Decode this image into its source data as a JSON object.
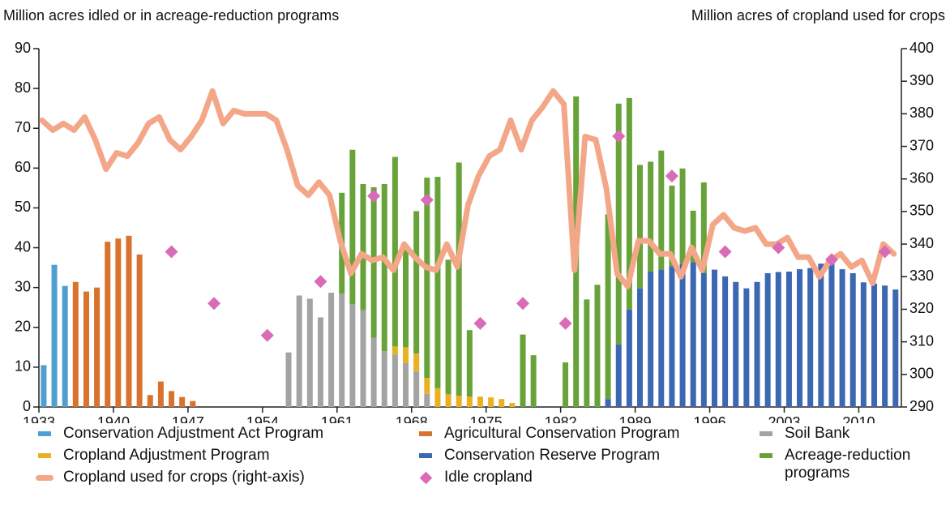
{
  "chart_data": {
    "type": "bar",
    "y_label": "Million acres idled or in acreage-reduction programs",
    "y2_label": "Million acres of cropland used for crops",
    "xlim": [
      1933,
      2014
    ],
    "xticks": [
      1933,
      1940,
      1947,
      1954,
      1961,
      1968,
      1975,
      1982,
      1989,
      1996,
      2003,
      2010
    ],
    "ylim": [
      0,
      90
    ],
    "yticks": [
      0,
      10,
      20,
      30,
      40,
      50,
      60,
      70,
      80,
      90
    ],
    "y2lim": [
      290,
      400
    ],
    "y2ticks": [
      290,
      300,
      310,
      320,
      330,
      340,
      350,
      360,
      370,
      380,
      390,
      400
    ],
    "stacked": true,
    "series": [
      {
        "name": "Conservation Adjustment Act Program",
        "type": "bar",
        "color": "#4f9fd3",
        "x": [
          1933,
          1934,
          1935
        ],
        "values": [
          10.5,
          35.7,
          30.4
        ]
      },
      {
        "name": "Agricultural Conservation Program",
        "type": "bar",
        "color": "#d9722c",
        "x": [
          1936,
          1937,
          1938,
          1939,
          1940,
          1941,
          1942,
          1943,
          1944,
          1945,
          1946,
          1947
        ],
        "values": [
          31.4,
          29,
          30,
          41.5,
          42.3,
          43,
          38.3,
          3.0,
          6.4,
          4.0,
          2.5,
          1.5
        ]
      },
      {
        "name": "Soil Bank",
        "type": "bar",
        "color": "#a3a3a3",
        "x": [
          1956,
          1957,
          1958,
          1959,
          1960,
          1961,
          1962,
          1963,
          1964,
          1965,
          1966,
          1967,
          1968,
          1969
        ],
        "values": [
          13.7,
          28,
          27.2,
          22.5,
          28.7,
          28.5,
          25.8,
          24.3,
          17.4,
          14,
          13.2,
          11,
          9,
          3.3
        ]
      },
      {
        "name": "Cropland Adjustment Program",
        "type": "bar",
        "color": "#e9b120",
        "x": [
          1966,
          1967,
          1968,
          1969,
          1970,
          1971,
          1972,
          1973,
          1974,
          1975,
          1976,
          1977
        ],
        "values": [
          2,
          4,
          4.4,
          4,
          4.7,
          3.2,
          2.8,
          2.6,
          2.6,
          2.4,
          2.0,
          1.0
        ]
      },
      {
        "name": "Conservation Reserve Program",
        "type": "bar",
        "color": "#3b67b3",
        "x": [
          1986,
          1987,
          1988,
          1989,
          1990,
          1991,
          1992,
          1993,
          1994,
          1995,
          1996,
          1997,
          1998,
          1999,
          2000,
          2001,
          2002,
          2003,
          2004,
          2005,
          2006,
          2007,
          2008,
          2009,
          2010,
          2011,
          2012,
          2013
        ],
        "values": [
          2,
          15.7,
          24.5,
          29.8,
          34,
          34.5,
          35.4,
          35.9,
          36.4,
          33.6,
          34.5,
          32.8,
          31.4,
          29.8,
          31.4,
          33.6,
          33.9,
          34.0,
          34.6,
          34.9,
          36.0,
          36.8,
          34.6,
          33.6,
          31.3,
          31.0,
          30.5,
          29.5
        ]
      },
      {
        "name": "Acreage-reduction programs",
        "type": "bar",
        "color": "#68a33a",
        "x": [
          1961,
          1962,
          1963,
          1964,
          1965,
          1966,
          1967,
          1968,
          1969,
          1970,
          1971,
          1972,
          1973,
          1978,
          1979,
          1982,
          1983,
          1984,
          1985,
          1986,
          1987,
          1988,
          1989,
          1990,
          1991,
          1992,
          1993,
          1994,
          1995
        ],
        "values": [
          25.3,
          38.8,
          31.7,
          37.8,
          42,
          47.6,
          25,
          35.8,
          50.3,
          53.1,
          33.8,
          58.6,
          16.7,
          18.2,
          13,
          11.2,
          78,
          27,
          30.7,
          46.4,
          60.5,
          53.1,
          31,
          27.6,
          29.9,
          20.2,
          24,
          12.9,
          22.8
        ]
      },
      {
        "name": "Cropland used for crops (right-axis)",
        "type": "line",
        "axis": "y2",
        "color": "#f3a788",
        "x": [
          1933,
          1934,
          1935,
          1936,
          1937,
          1938,
          1939,
          1940,
          1941,
          1942,
          1943,
          1944,
          1945,
          1946,
          1947,
          1948,
          1949,
          1950,
          1951,
          1952,
          1953,
          1954,
          1955,
          1956,
          1957,
          1958,
          1959,
          1960,
          1961,
          1962,
          1963,
          1964,
          1965,
          1966,
          1967,
          1968,
          1969,
          1970,
          1971,
          1972,
          1973,
          1974,
          1975,
          1976,
          1977,
          1978,
          1979,
          1980,
          1981,
          1982,
          1983,
          1984,
          1985,
          1986,
          1987,
          1988,
          1989,
          1990,
          1991,
          1992,
          1993,
          1994,
          1995,
          1996,
          1997,
          1998,
          1999,
          2000,
          2001,
          2002,
          2003,
          2004,
          2005,
          2006,
          2007,
          2008,
          2009,
          2010,
          2011,
          2012,
          2013
        ],
        "values": [
          378,
          375,
          377,
          375,
          379,
          372,
          363,
          368,
          367,
          371,
          377,
          379,
          372,
          369,
          373,
          378,
          387,
          377,
          381,
          380,
          380,
          380,
          378,
          369,
          358,
          355,
          359,
          355,
          341,
          331,
          337,
          335,
          336,
          332,
          340,
          336,
          333,
          332,
          340,
          333,
          352,
          361,
          367,
          369,
          378,
          369,
          378,
          382,
          387,
          383,
          332,
          373,
          372,
          357,
          331,
          327,
          341,
          341,
          337,
          337,
          330,
          339,
          332,
          346,
          349,
          345,
          344,
          345,
          340,
          340,
          342,
          336,
          336,
          330,
          335,
          337,
          333,
          335,
          328,
          340,
          337
        ]
      },
      {
        "name": "Idle cropland",
        "type": "scatter",
        "color": "#d96cb6",
        "x": [
          1945,
          1949,
          1954,
          1959,
          1964,
          1969,
          1974,
          1978,
          1982,
          1987,
          1992,
          1997,
          2002,
          2007,
          2012
        ],
        "values": [
          39,
          26,
          18,
          31.5,
          53,
          52,
          21,
          26,
          21,
          68,
          58,
          39,
          40,
          37,
          39
        ]
      }
    ]
  }
}
